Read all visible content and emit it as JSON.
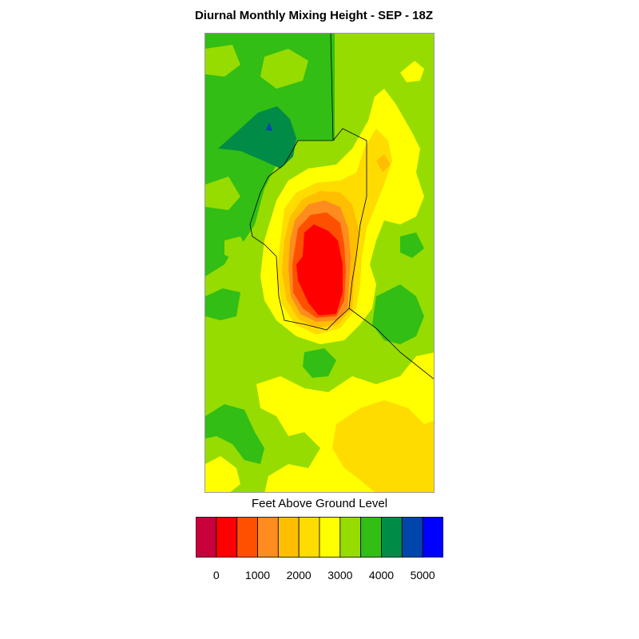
{
  "title": "Diurnal Monthly Mixing Height - SEP - 18Z",
  "legend": {
    "title": "Feet Above Ground Level",
    "colors": [
      "#c8003c",
      "#ff0000",
      "#ff5000",
      "#ff8c1e",
      "#ffbe00",
      "#ffdc00",
      "#ffff00",
      "#96dc00",
      "#32be14",
      "#008c46",
      "#0046aa",
      "#0000ff"
    ],
    "ticks": [
      "0",
      "1000",
      "2000",
      "3000",
      "4000",
      "5000"
    ]
  },
  "map": {
    "colors": {
      "background": "#96dc00",
      "green": "#32be14",
      "dark_green": "#008c46",
      "blue": "#0046aa",
      "yellow": "#ffff00",
      "gold": "#ffdc00",
      "amber": "#ffbe00",
      "orange": "#ff8c1e",
      "red_orange": "#ff5000",
      "red": "#ff0000",
      "boundary": "#000000"
    }
  }
}
